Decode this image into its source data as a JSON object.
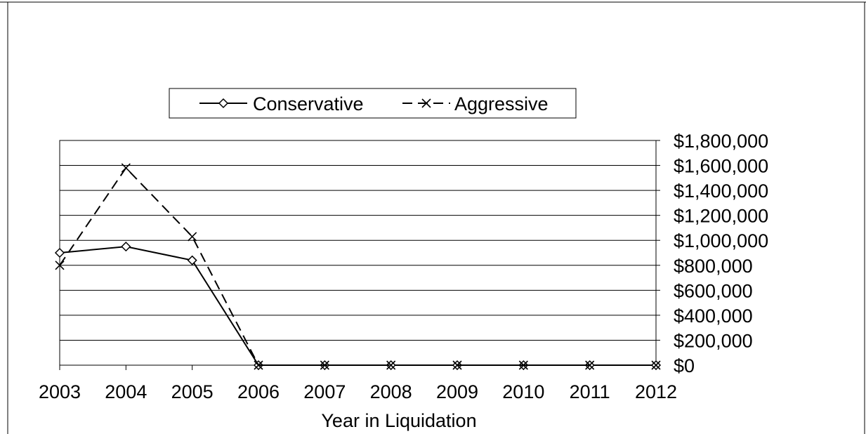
{
  "chart_data": {
    "type": "line",
    "categories": [
      "2003",
      "2004",
      "2005",
      "2006",
      "2007",
      "2008",
      "2009",
      "2010",
      "2011",
      "2012"
    ],
    "series": [
      {
        "name": "Conservative",
        "values": [
          900000,
          950000,
          840000,
          0,
          0,
          0,
          0,
          0,
          0,
          0
        ],
        "line_style": "solid",
        "marker": "diamond",
        "color": "#000000"
      },
      {
        "name": "Aggressive",
        "values": [
          800000,
          1580000,
          1030000,
          0,
          0,
          0,
          0,
          0,
          0,
          0
        ],
        "line_style": "dashed",
        "marker": "x",
        "color": "#000000"
      }
    ],
    "xlabel": "Year in Liquidation",
    "ylabel": "",
    "ylim": [
      0,
      1800000
    ],
    "y_ticks": [
      "$0",
      "$200,000",
      "$400,000",
      "$600,000",
      "$800,000",
      "$1,000,000",
      "$1,200,000",
      "$1,400,000",
      "$1,600,000",
      "$1,800,000"
    ],
    "y_axis_side": "right",
    "grid": true,
    "legend_position": "top-center"
  }
}
